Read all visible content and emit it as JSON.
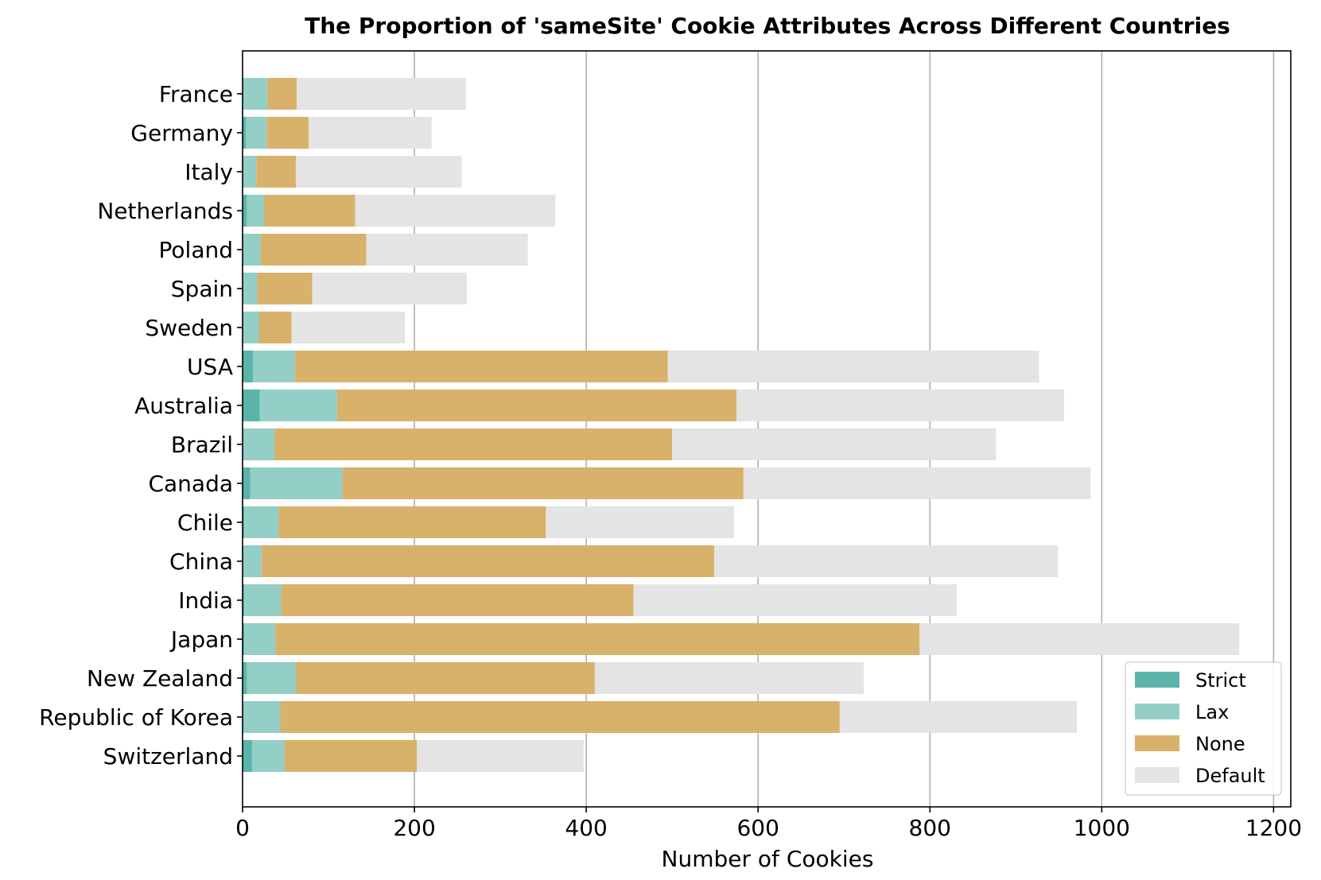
{
  "chart_data": {
    "type": "bar",
    "orientation": "horizontal",
    "stacked": true,
    "title": "The Proportion of 'sameSite' Cookie Attributes Across Different Countries",
    "xlabel": "Number of Cookies",
    "ylabel": "",
    "xlim": [
      0,
      1220
    ],
    "xticks": [
      0,
      200,
      400,
      600,
      800,
      1000,
      1200
    ],
    "grid": "vertical",
    "legend_position": "bottom-right",
    "categories": [
      "France",
      "Germany",
      "Italy",
      "Netherlands",
      "Poland",
      "Spain",
      "Sweden",
      "USA",
      "Australia",
      "Brazil",
      "Canada",
      "Chile",
      "China",
      "India",
      "Japan",
      "New Zealand",
      "Republic of Korea",
      "Switzerland"
    ],
    "series": [
      {
        "name": "Strict",
        "color": "#5ab4a8",
        "values": [
          1,
          4,
          1,
          5,
          1,
          1,
          1,
          12,
          20,
          1,
          9,
          2,
          1,
          2,
          2,
          5,
          1,
          11
        ]
      },
      {
        "name": "Lax",
        "color": "#93cec7",
        "values": [
          28,
          24,
          15,
          20,
          20,
          16,
          18,
          49,
          90,
          36,
          107,
          40,
          21,
          43,
          36,
          57,
          43,
          38
        ]
      },
      {
        "name": "None",
        "color": "#d8b26b",
        "values": [
          34,
          49,
          46,
          106,
          123,
          64,
          38,
          434,
          465,
          463,
          467,
          311,
          527,
          410,
          750,
          348,
          651,
          154
        ]
      },
      {
        "name": "Default",
        "color": "#e4e4e4",
        "values": [
          197,
          143,
          193,
          233,
          188,
          180,
          132,
          432,
          381,
          377,
          404,
          219,
          400,
          376,
          372,
          313,
          276,
          194
        ]
      }
    ]
  }
}
